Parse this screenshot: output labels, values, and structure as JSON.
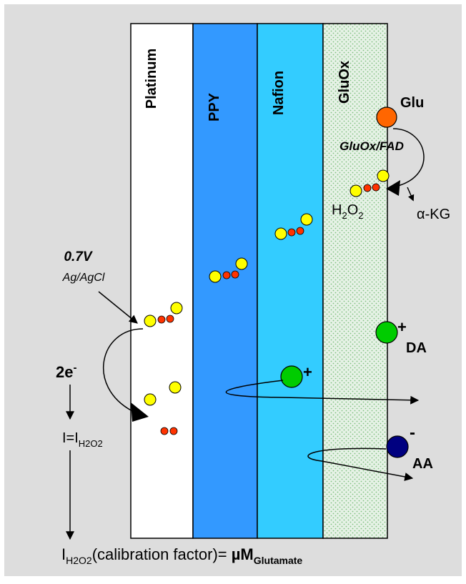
{
  "layers": {
    "platinum": "Platinum",
    "ppy": "PPY",
    "nafion": "Nafion",
    "gluox": "GluOx"
  },
  "labels": {
    "glu": "Glu",
    "gluox_fad": "GluOx/FAD",
    "h": "H",
    "sub2a": "2",
    "o": "O",
    "sub2b": "2",
    "akg": "α-KG",
    "voltage": "0.7V",
    "reference": "Ag/AgCl",
    "electrons": "2e",
    "electron_sup": "-",
    "current_i": "I=I",
    "current_sub": "H2O2",
    "formula_i": "I",
    "formula_sub": "H2O2",
    "formula_mid": "(calibration factor)= ",
    "formula_um": "µM",
    "formula_glut": "Glutamate",
    "plus_nafion": "+",
    "plus_da": "+",
    "da": "DA",
    "minus_aa": "-",
    "aa": "AA"
  },
  "colors": {
    "background": "#dddddd",
    "platinum": "#ffffff",
    "ppy": "#3399ff",
    "nafion": "#33ccff",
    "gluox": "#e6f2e6",
    "gluox_dots": "#7fbf7f",
    "oxygen_atom": "#ffff00",
    "hydrogen_atom": "#ff3300",
    "glu_molecule": "#ff6600",
    "cation": "#00cc00",
    "anion": "#000080"
  }
}
